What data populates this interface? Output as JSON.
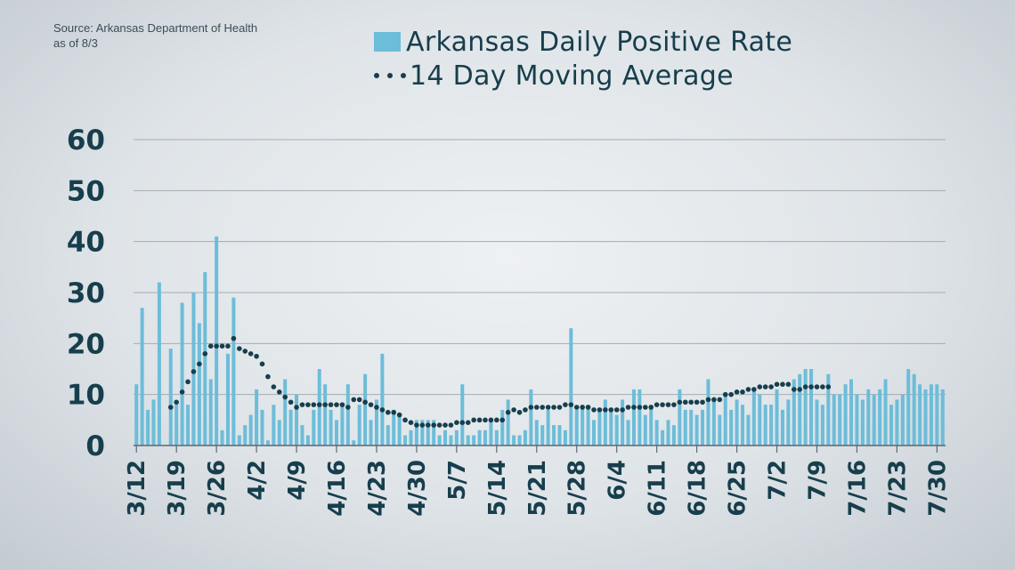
{
  "source": {
    "line1": "Source: Arkansas Department of Health",
    "line2": "as of 8/3"
  },
  "legend": {
    "bars_label": "Arkansas Daily Positive Rate",
    "line_label": "14 Day Moving Average"
  },
  "colors": {
    "bar": "#6cbdd9",
    "line": "#173e4c",
    "text": "#173e4c",
    "grid": "#a4acb2"
  },
  "chart_data": {
    "type": "bar",
    "title": "",
    "xlabel": "",
    "ylabel": "",
    "ylim": [
      0,
      60
    ],
    "yticks": [
      0,
      10,
      20,
      30,
      40,
      50,
      60
    ],
    "grid": true,
    "legend_position": "top",
    "x_tick_labels": [
      "3/12",
      "3/19",
      "3/26",
      "4/2",
      "4/9",
      "4/16",
      "4/23",
      "4/30",
      "5/7",
      "5/14",
      "5/21",
      "5/28",
      "6/4",
      "6/11",
      "6/18",
      "6/25",
      "7/2",
      "7/9",
      "7/16",
      "7/23",
      "7/30"
    ],
    "x_start": "3/12",
    "series": [
      {
        "name": "Arkansas Daily Positive Rate",
        "kind": "bar",
        "values": [
          12,
          27,
          7,
          9,
          32,
          0,
          19,
          8,
          28,
          8,
          30,
          24,
          34,
          13,
          41,
          3,
          18,
          29,
          2,
          4,
          6,
          11,
          7,
          1,
          8,
          5,
          13,
          7,
          10,
          4,
          2,
          7,
          15,
          12,
          7,
          5,
          8,
          12,
          1,
          8,
          14,
          5,
          9,
          18,
          4,
          7,
          6,
          2,
          3,
          5,
          5,
          5,
          5,
          2,
          3,
          2,
          3,
          12,
          2,
          2,
          3,
          3,
          5,
          3,
          7,
          9,
          2,
          2,
          3,
          11,
          5,
          4,
          7,
          4,
          4,
          3,
          23,
          7,
          8,
          8,
          5,
          7,
          9,
          7,
          6,
          9,
          5,
          11,
          11,
          6,
          8,
          5,
          3,
          5,
          4,
          11,
          7,
          7,
          6,
          7,
          13,
          9,
          6,
          10,
          7,
          9,
          8,
          6,
          11,
          10,
          8,
          8,
          11,
          7,
          9,
          13,
          14,
          15,
          15,
          9,
          8,
          14,
          10,
          10,
          12,
          13,
          10,
          9,
          11,
          10,
          11,
          13,
          8,
          9,
          10,
          15,
          14,
          12,
          11,
          12,
          12,
          11
        ]
      },
      {
        "name": "14 Day Moving Average",
        "kind": "dotted-line",
        "start_index": 6,
        "values": [
          7.5,
          8.5,
          10.5,
          12.5,
          14.5,
          16,
          18,
          19.5,
          19.5,
          19.5,
          19.5,
          21,
          19,
          18.5,
          18,
          17.5,
          16,
          13.5,
          11.5,
          10.5,
          9.5,
          8.5,
          7.5,
          8,
          8,
          8,
          8,
          8,
          8,
          8,
          8,
          7.5,
          9,
          9,
          8.5,
          8,
          7.5,
          7,
          6.5,
          6.5,
          6,
          5,
          4.5,
          4,
          4,
          4,
          4,
          4,
          4,
          4,
          4.5,
          4.5,
          4.5,
          5,
          5,
          5,
          5,
          5,
          5,
          6.5,
          7,
          6.5,
          7,
          7.5,
          7.5,
          7.5,
          7.5,
          7.5,
          7.5,
          8,
          8,
          7.5,
          7.5,
          7.5,
          7,
          7,
          7,
          7,
          7,
          7,
          7.5,
          7.5,
          7.5,
          7.5,
          7.5,
          8,
          8,
          8,
          8,
          8.5,
          8.5,
          8.5,
          8.5,
          8.5,
          9,
          9,
          9,
          10,
          10,
          10.5,
          10.5,
          11,
          11,
          11.5,
          11.5,
          11.5,
          12,
          12,
          12,
          11,
          11,
          11.5,
          11.5,
          11.5,
          11.5,
          11.5
        ]
      }
    ]
  }
}
